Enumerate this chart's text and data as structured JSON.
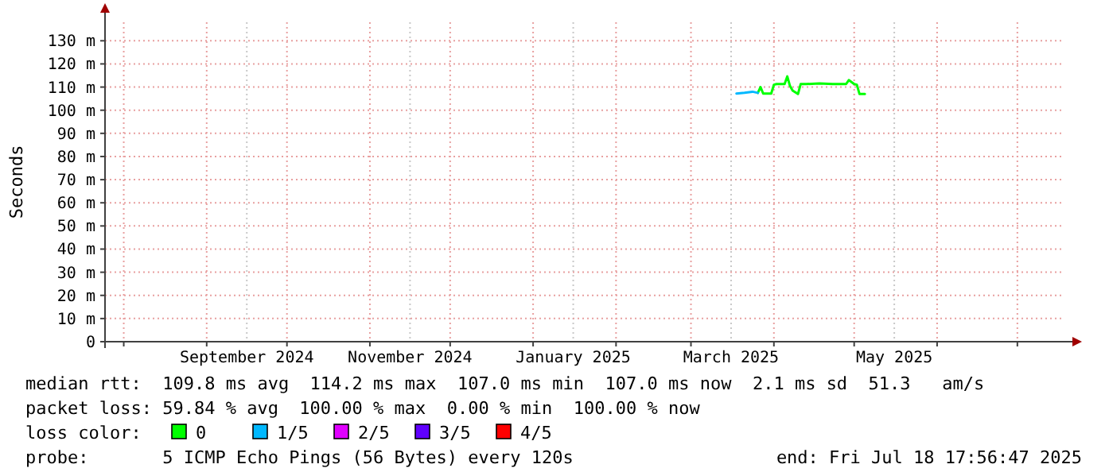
{
  "chart_data": {
    "type": "line",
    "ylabel": "Seconds",
    "xlim": [
      "2024-07-25",
      "2025-07-18"
    ],
    "xticks": [
      {
        "value": "2024-08-01",
        "label": null
      },
      {
        "value": "2024-09-01",
        "label": null
      },
      {
        "value": "2024-09-16",
        "label": "September 2024"
      },
      {
        "value": "2024-10-01",
        "label": null
      },
      {
        "value": "2024-11-01",
        "label": null
      },
      {
        "value": "2024-11-16",
        "label": "November 2024"
      },
      {
        "value": "2024-12-01",
        "label": null
      },
      {
        "value": "2025-01-01",
        "label": null
      },
      {
        "value": "2025-01-16",
        "label": "January 2025"
      },
      {
        "value": "2025-02-01",
        "label": null
      },
      {
        "value": "2025-03-01",
        "label": null
      },
      {
        "value": "2025-03-16",
        "label": "March 2025"
      },
      {
        "value": "2025-04-01",
        "label": null
      },
      {
        "value": "2025-05-01",
        "label": null
      },
      {
        "value": "2025-05-16",
        "label": "May 2025"
      },
      {
        "value": "2025-06-01",
        "label": null
      },
      {
        "value": "2025-07-01",
        "label": null
      }
    ],
    "ylim": [
      0,
      138
    ],
    "yticks": [
      0,
      {
        "value": 10,
        "label": "10 m"
      },
      {
        "value": 20,
        "label": "20 m"
      },
      {
        "value": 30,
        "label": "30 m"
      },
      {
        "value": 40,
        "label": "40 m"
      },
      {
        "value": 50,
        "label": "50 m"
      },
      {
        "value": 60,
        "label": "60 m"
      },
      {
        "value": 70,
        "label": "70 m"
      },
      {
        "value": 80,
        "label": "80 m"
      },
      {
        "value": 90,
        "label": "90 m"
      },
      {
        "value": 100,
        "label": "100 m"
      },
      {
        "value": 110,
        "label": "110 m"
      },
      {
        "value": 120,
        "label": "120 m"
      },
      {
        "value": 130,
        "label": "130 m"
      }
    ],
    "grid": true,
    "legend": "bottom",
    "legend_title": "loss color:",
    "marker": "none",
    "line_style": "solid",
    "series": [
      {
        "name": "0",
        "color": "#00ff00",
        "x": [
          "2025-03-26",
          "2025-03-27",
          "2025-03-28",
          "2025-03-31",
          "2025-04-01",
          "2025-04-02",
          "2025-04-05",
          "2025-04-06",
          "2025-04-07",
          "2025-04-08",
          "2025-04-10",
          "2025-04-11",
          "2025-04-13",
          "2025-04-18",
          "2025-04-23",
          "2025-04-28",
          "2025-04-29",
          "2025-05-01",
          "2025-05-02",
          "2025-05-03",
          "2025-05-05"
        ],
        "values": [
          107.5,
          110,
          107.2,
          107.2,
          111,
          111.3,
          111.3,
          114.6,
          110.5,
          108.5,
          107,
          111.3,
          111.3,
          111.6,
          111.3,
          111.3,
          113,
          111.3,
          111,
          107,
          107
        ]
      },
      {
        "name": "1/5",
        "color": "#00b8ff",
        "x": [
          "2025-03-18",
          "2025-03-21",
          "2025-03-24",
          "2025-03-26"
        ],
        "values": [
          107.2,
          107.5,
          108,
          107.5
        ]
      },
      {
        "name": "2/5",
        "color": "#e000ff"
      },
      {
        "name": "3/5",
        "color": "#6000ff"
      },
      {
        "name": "4/5",
        "color": "#ff0000"
      }
    ],
    "annotations": [
      "median rtt:  109.8 ms avg  114.2 ms max  107.0 ms min  107.0 ms now  2.1 ms sd  51.3   am/s",
      "packet loss: 59.84 % avg  100.00 % max  0.00 % min  100.00 % now",
      "probe:       5 ICMP Echo Pings (56 Bytes) every 120s",
      "end: Fri Jul 18 17:56:47 2025"
    ]
  }
}
